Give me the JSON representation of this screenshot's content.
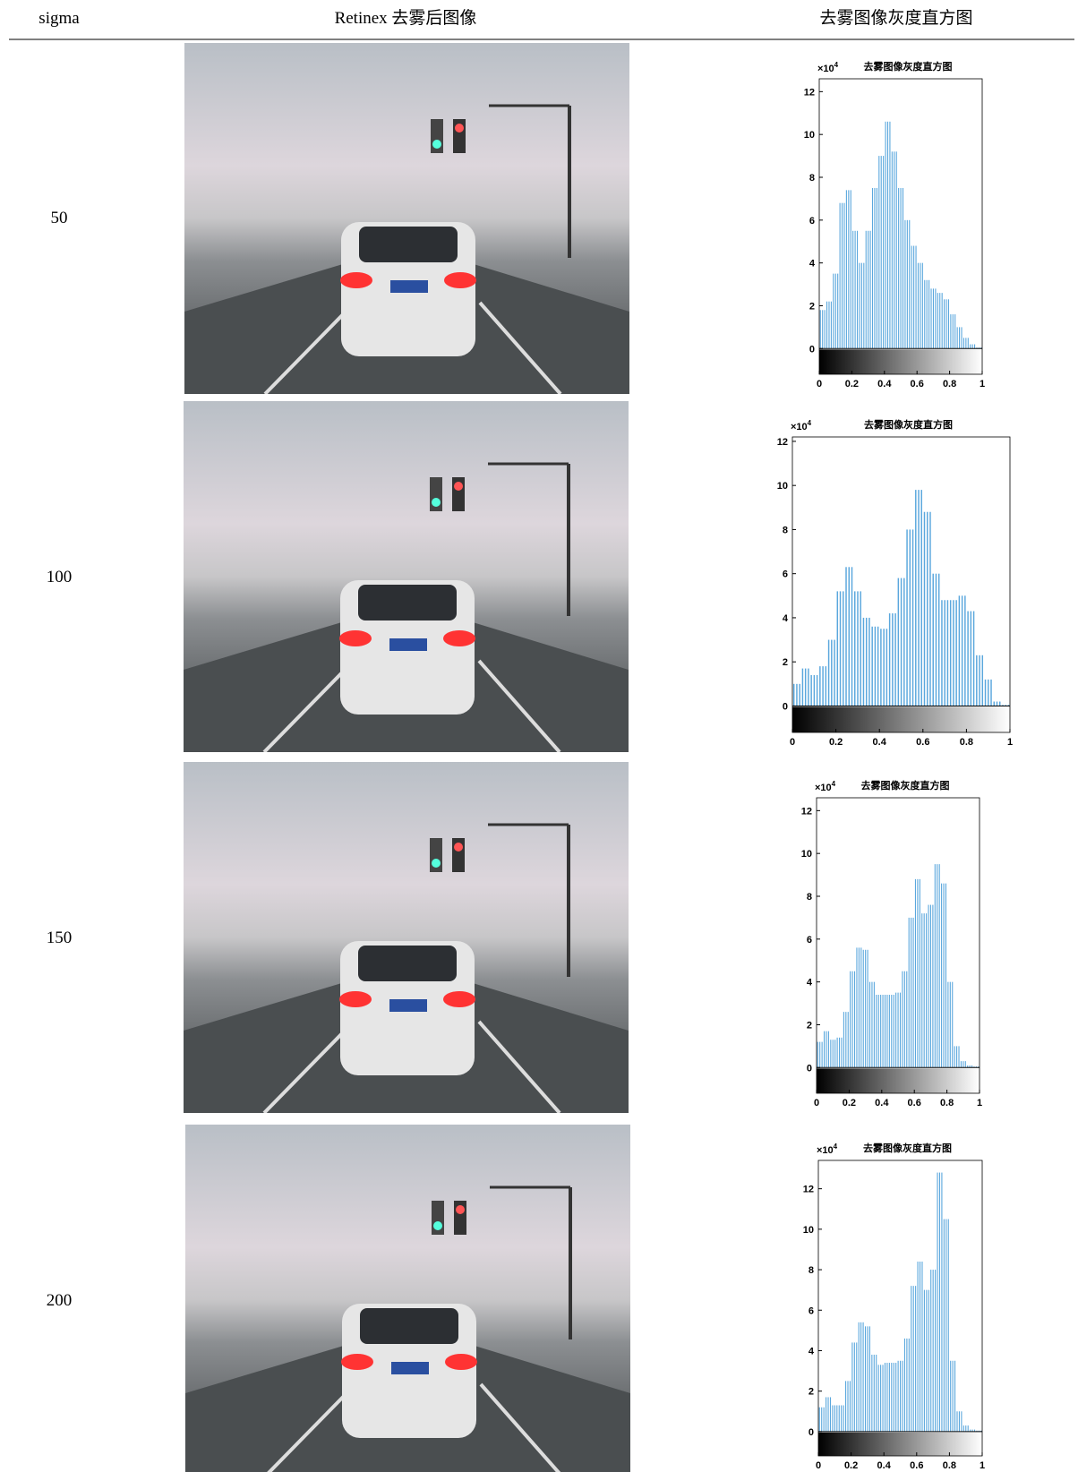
{
  "table": {
    "headers": [
      "sigma",
      "Retinex 去雾后图像",
      "去雾图像灰度直方图"
    ],
    "sigmas": [
      "50",
      "100",
      "150",
      "200"
    ]
  },
  "chart_data": [
    {
      "type": "histogram",
      "title": "去雾图像灰度直方图",
      "y_multiplier": "×10",
      "y_exponent": "4",
      "color": "#5aa7dd",
      "bins": [
        0,
        0.04,
        0.08,
        0.12,
        0.16,
        0.2,
        0.24,
        0.28,
        0.32,
        0.36,
        0.4,
        0.44,
        0.48,
        0.52,
        0.56,
        0.6,
        0.64,
        0.68,
        0.72,
        0.76,
        0.8,
        0.84,
        0.88,
        0.92,
        0.96,
        1
      ],
      "counts": [
        1.8,
        2.2,
        3.5,
        6.8,
        7.4,
        5.5,
        4.0,
        5.5,
        7.5,
        9.0,
        10.6,
        9.2,
        7.5,
        6.0,
        4.8,
        4.0,
        3.2,
        2.8,
        2.6,
        2.3,
        1.6,
        1.0,
        0.5,
        0.2,
        0.05
      ],
      "xlim": [
        0,
        1
      ],
      "xticks": [
        0,
        0.2,
        0.4,
        0.6,
        0.8,
        1
      ],
      "ylim": [
        -1.2,
        12.6
      ],
      "yticks": [
        0,
        2,
        4,
        6,
        8,
        10,
        12
      ]
    },
    {
      "type": "histogram",
      "title": "去雾图像灰度直方图",
      "y_multiplier": "×10",
      "y_exponent": "4",
      "color": "#5aa7dd",
      "bins": [
        0,
        0.04,
        0.08,
        0.12,
        0.16,
        0.2,
        0.24,
        0.28,
        0.32,
        0.36,
        0.4,
        0.44,
        0.48,
        0.52,
        0.56,
        0.6,
        0.64,
        0.68,
        0.72,
        0.76,
        0.8,
        0.84,
        0.88,
        0.92,
        0.96,
        1
      ],
      "counts": [
        1.0,
        1.7,
        1.4,
        1.8,
        3.0,
        5.2,
        6.3,
        5.2,
        4.0,
        3.6,
        3.5,
        4.2,
        5.8,
        8.0,
        9.8,
        8.8,
        6.0,
        4.8,
        4.8,
        5.0,
        4.3,
        2.3,
        1.2,
        0.2,
        0.05
      ],
      "xlim": [
        0,
        1
      ],
      "xticks": [
        0,
        0.2,
        0.4,
        0.6,
        0.8,
        1
      ],
      "ylim": [
        -1.2,
        12.2
      ],
      "yticks": [
        0,
        2,
        4,
        6,
        8,
        10,
        12
      ]
    },
    {
      "type": "histogram",
      "title": "去雾图像灰度直方图",
      "y_multiplier": "×10",
      "y_exponent": "4",
      "color": "#5aa7dd",
      "bins": [
        0,
        0.04,
        0.08,
        0.12,
        0.16,
        0.2,
        0.24,
        0.28,
        0.32,
        0.36,
        0.4,
        0.44,
        0.48,
        0.52,
        0.56,
        0.6,
        0.64,
        0.68,
        0.72,
        0.76,
        0.8,
        0.84,
        0.88,
        0.92,
        0.96,
        1
      ],
      "counts": [
        1.2,
        1.7,
        1.3,
        1.4,
        2.6,
        4.5,
        5.6,
        5.5,
        4.0,
        3.4,
        3.4,
        3.4,
        3.5,
        4.5,
        7.0,
        8.8,
        7.2,
        7.6,
        9.5,
        8.6,
        4.0,
        1.0,
        0.3,
        0.1,
        0.05
      ],
      "xlim": [
        0,
        1
      ],
      "xticks": [
        0,
        0.2,
        0.4,
        0.6,
        0.8,
        1
      ],
      "ylim": [
        -1.2,
        12.6
      ],
      "yticks": [
        0,
        2,
        4,
        6,
        8,
        10,
        12
      ]
    },
    {
      "type": "histogram",
      "title": "去雾图像灰度直方图",
      "y_multiplier": "×10",
      "y_exponent": "4",
      "color": "#5aa7dd",
      "bins": [
        0,
        0.04,
        0.08,
        0.12,
        0.16,
        0.2,
        0.24,
        0.28,
        0.32,
        0.36,
        0.4,
        0.44,
        0.48,
        0.52,
        0.56,
        0.6,
        0.64,
        0.68,
        0.72,
        0.76,
        0.8,
        0.84,
        0.88,
        0.92,
        0.96,
        1
      ],
      "counts": [
        1.2,
        1.7,
        1.3,
        1.3,
        2.5,
        4.4,
        5.4,
        5.2,
        3.8,
        3.3,
        3.4,
        3.4,
        3.5,
        4.6,
        7.2,
        8.4,
        7.0,
        8.0,
        12.8,
        10.5,
        3.5,
        1.0,
        0.3,
        0.1,
        0.05
      ],
      "xlim": [
        0,
        1
      ],
      "xticks": [
        0,
        0.2,
        0.4,
        0.6,
        0.8,
        1
      ],
      "ylim": [
        -1.2,
        13.4
      ],
      "yticks": [
        0,
        2,
        4,
        6,
        8,
        10,
        12
      ]
    }
  ]
}
